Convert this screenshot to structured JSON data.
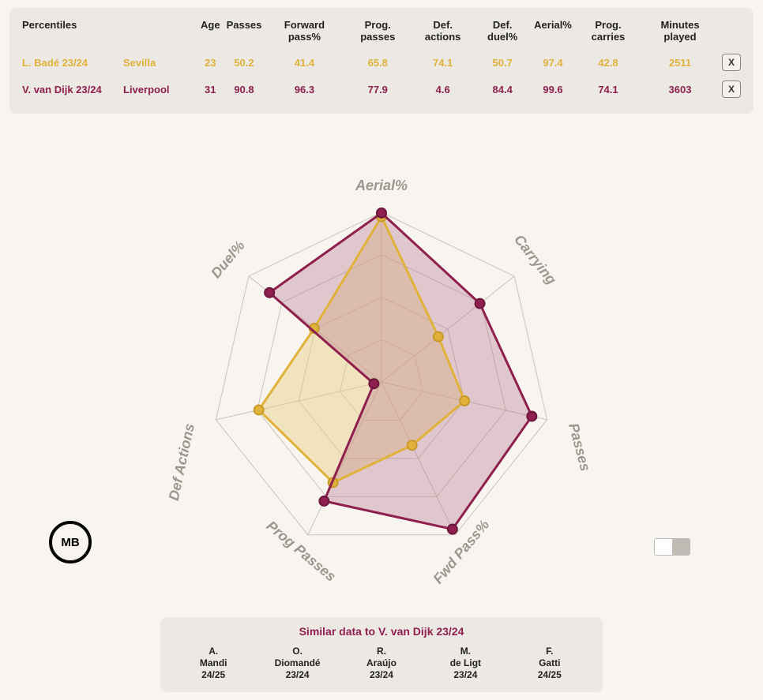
{
  "table": {
    "title": "Percentiles",
    "columns": [
      "Age",
      "Passes",
      "Forward pass%",
      "Prog. passes",
      "Def. actions",
      "Def. duel%",
      "Aerial%",
      "Prog. carries",
      "Minutes played"
    ],
    "rows": [
      {
        "name": "L. Badé 23/24",
        "team": "Sevilla",
        "color": "#e0b23a",
        "vals": [
          "23",
          "50.2",
          "41.4",
          "65.8",
          "74.1",
          "50.7",
          "97.4",
          "42.8",
          "2511"
        ]
      },
      {
        "name": "V. van Dijk 23/24",
        "team": "Liverpool",
        "color": "#8e1f4e",
        "vals": [
          "31",
          "90.8",
          "96.3",
          "77.9",
          "4.6",
          "84.4",
          "99.6",
          "74.1",
          "3603"
        ]
      }
    ],
    "remove_label": "X"
  },
  "radar": {
    "axes": [
      "Aerial%",
      "Carrying",
      "Passes",
      "Fwd Pass%",
      "Prog Passes",
      "Def Actions",
      "Duel%"
    ],
    "rings": [
      25,
      50,
      75,
      100
    ],
    "ring_color": "#c9c3b8",
    "bg": "#f8f5f0",
    "series": [
      {
        "name": "L. Badé 23/24",
        "stroke": "#e0b23a",
        "fill": "#e9cf80",
        "fill_opacity": 0.45,
        "width": 3,
        "marker_r": 6,
        "values": [
          97.4,
          42.8,
          50.2,
          41.4,
          65.8,
          74.1,
          50.7
        ]
      },
      {
        "name": "V. van Dijk 23/24",
        "stroke": "#8e1f4e",
        "fill": "#b5748f",
        "fill_opacity": 0.35,
        "width": 3,
        "marker_r": 6,
        "values": [
          99.6,
          74.1,
          90.8,
          96.3,
          77.9,
          4.6,
          84.4
        ]
      }
    ],
    "label_fontsize": 18,
    "label_color": "#9c978e"
  },
  "similar": {
    "title": "Similar data to V. van Dijk 23/24",
    "items": [
      {
        "name": "A. Mandi",
        "season": "24/25"
      },
      {
        "name": "O. Diomandé",
        "season": "23/24"
      },
      {
        "name": "R. Araújo",
        "season": "23/24"
      },
      {
        "name": "M. de Ligt",
        "season": "23/24"
      },
      {
        "name": "F. Gatti",
        "season": "24/25"
      }
    ]
  },
  "logo_text": "MB"
}
